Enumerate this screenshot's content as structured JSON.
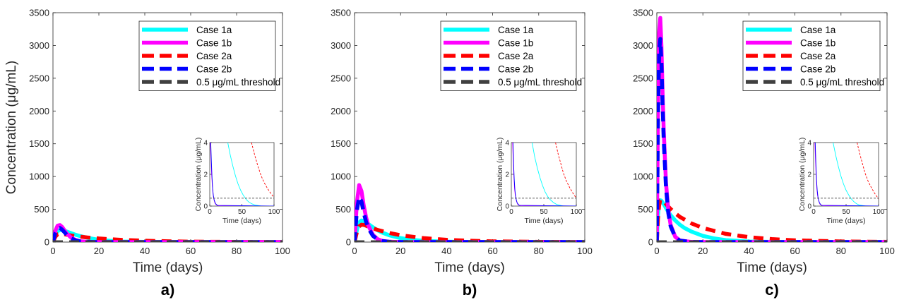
{
  "chart_data": [
    {
      "type": "line",
      "panel_label": "a)",
      "xlabel": "Time (days)",
      "ylabel": "Concentration (",
      "ylabel_unit": "μg/mL)",
      "xlim": [
        0,
        100
      ],
      "ylim": [
        0,
        3500
      ],
      "xticks": [
        0,
        20,
        40,
        60,
        80,
        100
      ],
      "yticks": [
        0,
        500,
        1000,
        1500,
        2000,
        2500,
        3000,
        3500
      ],
      "legend_position": "top-right",
      "series": [
        {
          "name": "Case 1a",
          "color": "#00FFFF",
          "style": "solid",
          "x": [
            0,
            1,
            2,
            3,
            4,
            5,
            6,
            8,
            10,
            12,
            15,
            20,
            25,
            30,
            40,
            50,
            60,
            100
          ],
          "y": [
            0,
            110,
            165,
            185,
            180,
            172,
            160,
            135,
            110,
            90,
            65,
            35,
            18,
            9,
            3,
            1,
            0,
            0
          ]
        },
        {
          "name": "Case 1b",
          "color": "#FF00FF",
          "style": "solid",
          "x": [
            0,
            1,
            2,
            3,
            4,
            5,
            6,
            8,
            10,
            12,
            15,
            20,
            100
          ],
          "y": [
            0,
            170,
            250,
            260,
            230,
            180,
            130,
            65,
            30,
            12,
            3,
            0,
            0
          ]
        },
        {
          "name": "Case 2a",
          "color": "#FF0000",
          "style": "dashed",
          "x": [
            0,
            1,
            2,
            3,
            4,
            5,
            6,
            8,
            10,
            15,
            20,
            30,
            40,
            50,
            60,
            80,
            100
          ],
          "y": [
            0,
            80,
            120,
            130,
            128,
            120,
            112,
            100,
            90,
            70,
            55,
            33,
            20,
            12,
            7,
            2,
            0
          ]
        },
        {
          "name": "Case 2b",
          "color": "#0000FF",
          "style": "dashed",
          "x": [
            0,
            1,
            2,
            3,
            4,
            5,
            6,
            8,
            10,
            12,
            15,
            20,
            100
          ],
          "y": [
            0,
            140,
            205,
            215,
            190,
            150,
            110,
            55,
            25,
            10,
            3,
            0,
            0
          ]
        },
        {
          "name": "0.5 μg/mL threshold",
          "color": "#404040",
          "style": "dashed",
          "x": [
            0,
            100
          ],
          "y": [
            0.5,
            0.5
          ]
        }
      ],
      "inset": {
        "xlabel": "Time (days)",
        "ylabel": "Concentration (μg/mL)",
        "xlim": [
          0,
          100
        ],
        "ylim": [
          0,
          4
        ],
        "xticks": [
          0,
          50,
          100
        ],
        "yticks": [
          0,
          2,
          4
        ],
        "series": [
          {
            "color": "#00FFFF",
            "style": "solid",
            "x": [
              28,
              32,
              36,
              40,
              44,
              48,
              52,
              56,
              60,
              65,
              70,
              80
            ],
            "y": [
              4,
              3.2,
              2.5,
              1.9,
              1.4,
              1.0,
              0.7,
              0.45,
              0.28,
              0.15,
              0.07,
              0
            ]
          },
          {
            "color": "#FF0000",
            "style": "dashed",
            "x": [
              65,
              70,
              75,
              80,
              85,
              90,
              95,
              100
            ],
            "y": [
              4,
              3.2,
              2.5,
              1.9,
              1.45,
              1.1,
              0.8,
              0.55
            ]
          },
          {
            "color": "#FF00FF",
            "style": "solid",
            "x": [
              1,
              2,
              3,
              4,
              5,
              6,
              8,
              10,
              15,
              100
            ],
            "y": [
              4,
              3.0,
              2.0,
              1.3,
              0.8,
              0.5,
              0.2,
              0.08,
              0.01,
              0
            ]
          },
          {
            "color": "#0000FF",
            "style": "solid",
            "x": [
              1.5,
              2.5,
              3.5,
              4.5,
              5.5,
              7,
              9,
              12,
              100
            ],
            "y": [
              4,
              2.8,
              1.8,
              1.1,
              0.7,
              0.35,
              0.15,
              0.04,
              0
            ]
          },
          {
            "color": "#404040",
            "style": "dashed",
            "x": [
              0,
              100
            ],
            "y": [
              0.5,
              0.5
            ]
          }
        ]
      }
    },
    {
      "type": "line",
      "panel_label": "b)",
      "xlabel": "Time (days)",
      "ylabel": "",
      "ylabel_unit": "",
      "xlim": [
        0,
        100
      ],
      "ylim": [
        0,
        3500
      ],
      "xticks": [
        0,
        20,
        40,
        60,
        80,
        100
      ],
      "yticks": [
        0,
        500,
        1000,
        1500,
        2000,
        2500,
        3000,
        3500
      ],
      "legend_position": "top-right",
      "series": [
        {
          "name": "Case 1a",
          "color": "#00FFFF",
          "style": "solid",
          "x": [
            0,
            1,
            2,
            3,
            4,
            5,
            6,
            8,
            10,
            12,
            15,
            20,
            25,
            30,
            40,
            50,
            60,
            100
          ],
          "y": [
            0,
            180,
            300,
            330,
            320,
            300,
            275,
            225,
            180,
            145,
            105,
            60,
            33,
            18,
            5,
            1,
            0,
            0
          ]
        },
        {
          "name": "Case 1b",
          "color": "#FF00FF",
          "style": "solid",
          "x": [
            0,
            1,
            2,
            3,
            4,
            5,
            6,
            8,
            10,
            12,
            15,
            20,
            100
          ],
          "y": [
            0,
            600,
            870,
            780,
            560,
            380,
            250,
            110,
            45,
            18,
            5,
            0,
            0
          ]
        },
        {
          "name": "Case 2a",
          "color": "#FF0000",
          "style": "dashed",
          "x": [
            0,
            1,
            2,
            3,
            4,
            5,
            6,
            8,
            10,
            15,
            20,
            30,
            40,
            50,
            60,
            80,
            100
          ],
          "y": [
            0,
            150,
            240,
            265,
            262,
            250,
            235,
            210,
            185,
            140,
            105,
            60,
            35,
            20,
            11,
            3,
            0
          ]
        },
        {
          "name": "Case 2b",
          "color": "#0000FF",
          "style": "dashed",
          "x": [
            0,
            1,
            2,
            3,
            4,
            5,
            6,
            8,
            10,
            12,
            15,
            20,
            100
          ],
          "y": [
            0,
            480,
            690,
            620,
            450,
            310,
            210,
            95,
            40,
            16,
            4,
            0,
            0
          ]
        },
        {
          "name": "0.5 μg/mL threshold",
          "color": "#404040",
          "style": "dashed",
          "x": [
            0,
            100
          ],
          "y": [
            0.5,
            0.5
          ]
        }
      ],
      "inset": {
        "xlabel": "Time (days)",
        "ylabel": "Concentration (μg/mL)",
        "xlim": [
          0,
          100
        ],
        "ylim": [
          0,
          4
        ],
        "xticks": [
          0,
          50,
          100
        ],
        "yticks": [
          0,
          2,
          4
        ],
        "series": [
          {
            "color": "#00FFFF",
            "style": "solid",
            "x": [
              32,
              36,
              40,
              44,
              48,
              52,
              56,
              60,
              65,
              70,
              80
            ],
            "y": [
              4,
              3.1,
              2.4,
              1.8,
              1.3,
              0.9,
              0.6,
              0.4,
              0.22,
              0.1,
              0
            ]
          },
          {
            "color": "#FF0000",
            "style": "dashed",
            "x": [
              68,
              72,
              76,
              80,
              85,
              90,
              95,
              100
            ],
            "y": [
              4,
              3.3,
              2.7,
              2.1,
              1.55,
              1.15,
              0.8,
              0.5
            ]
          },
          {
            "color": "#FF00FF",
            "style": "solid",
            "x": [
              2,
              3,
              4,
              5,
              6,
              8,
              10,
              15,
              100
            ],
            "y": [
              4,
              2.8,
              1.8,
              1.1,
              0.7,
              0.3,
              0.1,
              0.01,
              0
            ]
          },
          {
            "color": "#0000FF",
            "style": "solid",
            "x": [
              2.5,
              3.5,
              4.5,
              5.5,
              7,
              9,
              12,
              100
            ],
            "y": [
              4,
              2.7,
              1.7,
              1.0,
              0.5,
              0.2,
              0.05,
              0
            ]
          },
          {
            "color": "#404040",
            "style": "dashed",
            "x": [
              0,
              100
            ],
            "y": [
              0.5,
              0.5
            ]
          }
        ]
      }
    },
    {
      "type": "line",
      "panel_label": "c)",
      "xlabel": "Time (days)",
      "ylabel": "",
      "ylabel_unit": "",
      "xlim": [
        0,
        100
      ],
      "ylim": [
        0,
        3500
      ],
      "xticks": [
        0,
        20,
        40,
        60,
        80,
        100
      ],
      "yticks": [
        0,
        500,
        1000,
        1500,
        2000,
        2500,
        3000,
        3500
      ],
      "legend_position": "top-right",
      "series": [
        {
          "name": "Case 1a",
          "color": "#00FFFF",
          "style": "solid",
          "x": [
            0,
            0.5,
            1,
            1.5,
            2,
            3,
            4,
            5,
            6,
            8,
            10,
            12,
            15,
            20,
            25,
            30,
            40,
            50,
            60,
            100
          ],
          "y": [
            0,
            400,
            600,
            640,
            630,
            580,
            520,
            460,
            410,
            330,
            265,
            215,
            160,
            95,
            55,
            30,
            9,
            2,
            0,
            0
          ]
        },
        {
          "name": "Case 1b",
          "color": "#FF00FF",
          "style": "solid",
          "x": [
            0,
            0.5,
            1,
            1.5,
            2,
            2.5,
            3,
            4,
            5,
            6,
            8,
            10,
            15,
            20,
            100
          ],
          "y": [
            0,
            2000,
            3200,
            3420,
            3000,
            2300,
            1700,
            900,
            480,
            260,
            80,
            25,
            2,
            0,
            0
          ]
        },
        {
          "name": "Case 2a",
          "color": "#FF0000",
          "style": "dashed",
          "x": [
            0,
            0.5,
            1,
            1.5,
            2,
            3,
            4,
            5,
            6,
            8,
            10,
            15,
            20,
            30,
            40,
            50,
            60,
            80,
            100
          ],
          "y": [
            0,
            350,
            560,
            640,
            650,
            620,
            580,
            540,
            505,
            440,
            385,
            285,
            215,
            125,
            75,
            45,
            27,
            10,
            3
          ]
        },
        {
          "name": "Case 2b",
          "color": "#0000FF",
          "style": "dashed",
          "x": [
            0,
            0.5,
            1,
            1.5,
            2,
            2.5,
            3,
            4,
            5,
            6,
            8,
            10,
            15,
            20,
            100
          ],
          "y": [
            0,
            1800,
            2900,
            3100,
            2750,
            2100,
            1550,
            830,
            440,
            240,
            75,
            22,
            2,
            0,
            0
          ]
        },
        {
          "name": "0.5 μg/mL threshold",
          "color": "#404040",
          "style": "dashed",
          "x": [
            0,
            100
          ],
          "y": [
            0.5,
            0.5
          ]
        }
      ],
      "inset": {
        "xlabel": "Time (days)",
        "ylabel": "Concentration (μg/mL)",
        "xlim": [
          0,
          100
        ],
        "ylim": [
          0,
          4
        ],
        "xticks": [
          0,
          50,
          100
        ],
        "yticks": [
          0,
          2,
          4
        ],
        "series": [
          {
            "color": "#00FFFF",
            "style": "solid",
            "x": [
              30,
              34,
              38,
              42,
              46,
              50,
              54,
              58,
              62,
              66,
              70,
              80
            ],
            "y": [
              4,
              3.2,
              2.5,
              1.9,
              1.4,
              1.0,
              0.7,
              0.45,
              0.28,
              0.15,
              0.07,
              0
            ]
          },
          {
            "color": "#FF0000",
            "style": "dashed",
            "x": [
              67,
              71,
              75,
              79,
              84,
              89,
              94,
              100
            ],
            "y": [
              4,
              3.3,
              2.7,
              2.1,
              1.55,
              1.15,
              0.8,
              0.45
            ]
          },
          {
            "color": "#FF00FF",
            "style": "solid",
            "x": [
              2,
              3,
              4,
              5,
              6,
              8,
              10,
              15,
              100
            ],
            "y": [
              4,
              2.8,
              1.8,
              1.1,
              0.7,
              0.3,
              0.1,
              0.01,
              0
            ]
          },
          {
            "color": "#0000FF",
            "style": "solid",
            "x": [
              2.5,
              3.5,
              4.5,
              5.5,
              7,
              9,
              12,
              100
            ],
            "y": [
              4,
              2.7,
              1.7,
              1.0,
              0.5,
              0.2,
              0.05,
              0
            ]
          },
          {
            "color": "#404040",
            "style": "dashed",
            "x": [
              0,
              100
            ],
            "y": [
              0.5,
              0.5
            ]
          }
        ]
      }
    }
  ]
}
